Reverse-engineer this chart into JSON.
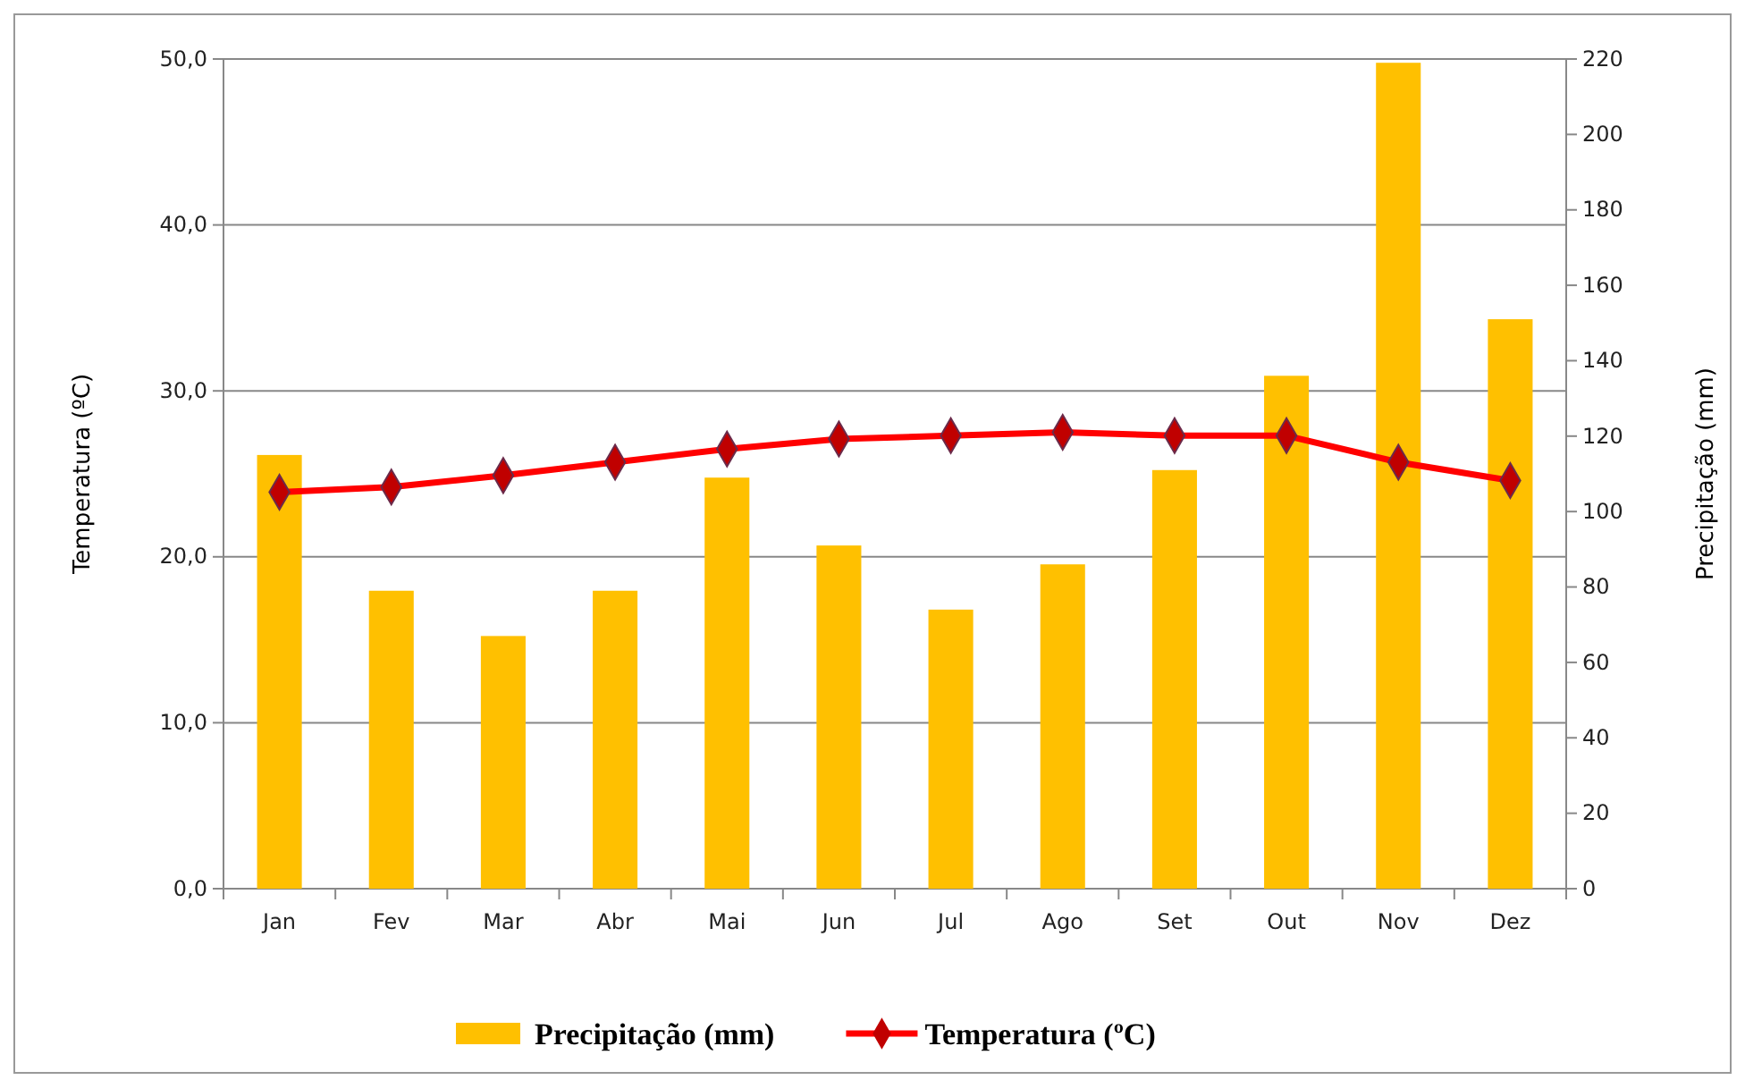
{
  "chart_data": {
    "type": "bar",
    "ylabel": "Temperatura (ºC)",
    "y2label": "Precipitação (mm)",
    "categories": [
      "Jan",
      "Fev",
      "Mar",
      "Abr",
      "Mai",
      "Jun",
      "Jul",
      "Ago",
      "Set",
      "Out",
      "Nov",
      "Dez"
    ],
    "series": [
      {
        "name": "Precipitação (mm)",
        "axis": "y2",
        "color": "#ffc000",
        "values": [
          115,
          79,
          67,
          79,
          109,
          91,
          74,
          86,
          111,
          136,
          219,
          151
        ]
      },
      {
        "name": "Temperatura (ºC)",
        "type": "line",
        "color": "#ff0000",
        "marker": "diamond",
        "values": [
          23.9,
          24.2,
          24.9,
          25.7,
          26.5,
          27.1,
          27.3,
          27.5,
          27.3,
          27.3,
          25.7,
          24.6
        ]
      }
    ],
    "ylim": [
      0,
      50
    ],
    "yticks": [
      {
        "value": 0,
        "label": "0,0"
      },
      {
        "value": 10,
        "label": "10,0"
      },
      {
        "value": 20,
        "label": "20,0"
      },
      {
        "value": 30,
        "label": "30,0"
      },
      {
        "value": 40,
        "label": "40,0"
      },
      {
        "value": 50,
        "label": "50,0"
      }
    ],
    "y2lim": [
      0,
      220
    ],
    "y2ticks": [
      0,
      20,
      40,
      60,
      80,
      100,
      120,
      140,
      160,
      180,
      200,
      220
    ],
    "grid": "y",
    "legend": "bottom"
  }
}
